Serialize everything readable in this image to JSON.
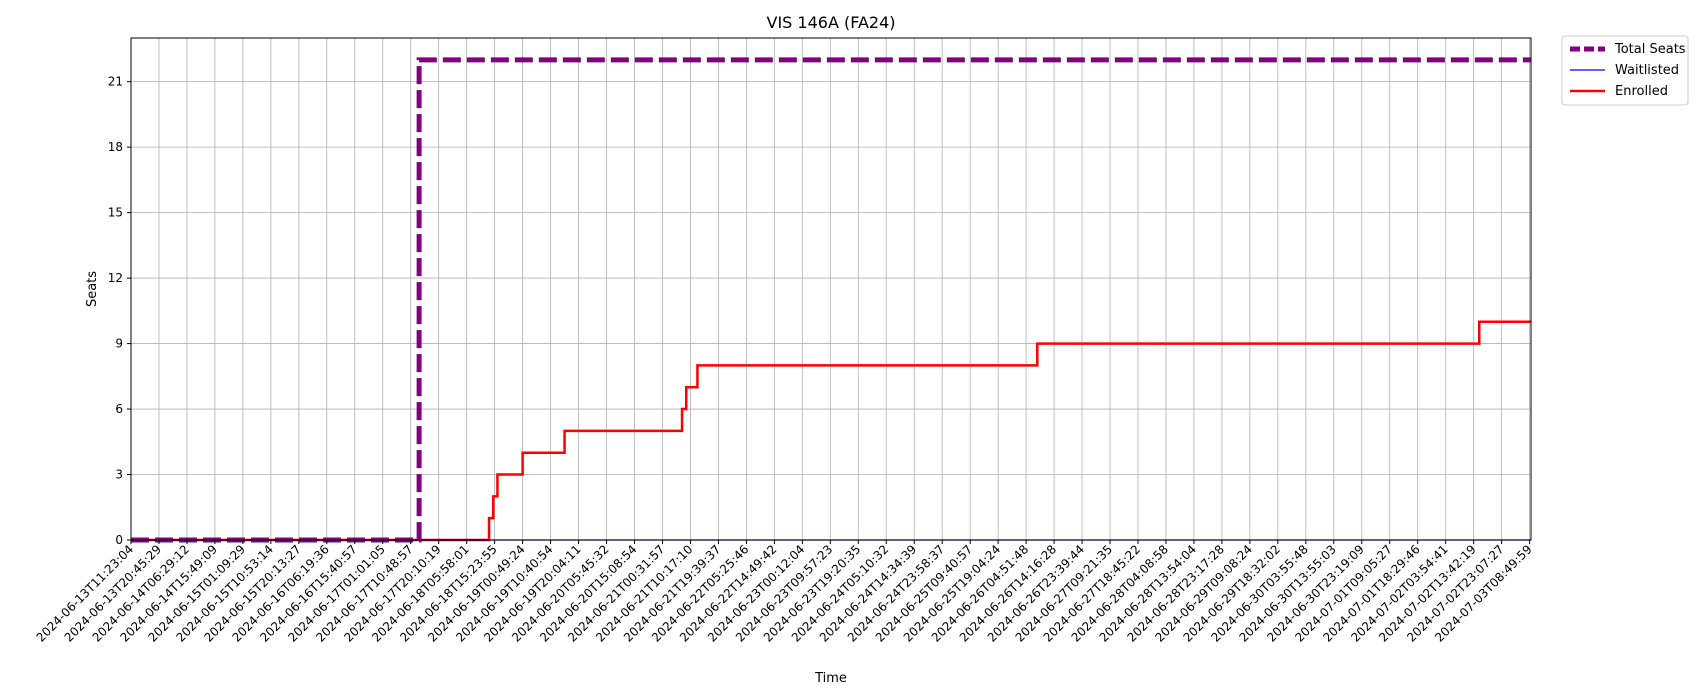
{
  "chart_data": {
    "type": "line",
    "title": "VIS 146A (FA24)",
    "xlabel": "Time",
    "ylabel": "Seats",
    "ylim": [
      0,
      23
    ],
    "yticks": [
      0,
      3,
      6,
      9,
      12,
      15,
      18,
      21
    ],
    "grid": true,
    "legend_position": "outside-top-right",
    "x_tick_labels": [
      "2024-06-13T11:23:04",
      "2024-06-13T20:45:29",
      "2024-06-14T06:29:12",
      "2024-06-14T15:49:09",
      "2024-06-15T01:09:29",
      "2024-06-15T10:53:14",
      "2024-06-15T20:13:27",
      "2024-06-16T06:19:36",
      "2024-06-16T15:40:57",
      "2024-06-17T01:01:05",
      "2024-06-17T10:48:57",
      "2024-06-17T20:10:19",
      "2024-06-18T05:58:01",
      "2024-06-18T15:23:55",
      "2024-06-19T00:49:24",
      "2024-06-19T10:40:54",
      "2024-06-19T20:04:11",
      "2024-06-20T05:45:32",
      "2024-06-20T15:08:54",
      "2024-06-21T00:31:57",
      "2024-06-21T10:17:10",
      "2024-06-21T19:39:37",
      "2024-06-22T05:25:46",
      "2024-06-22T14:49:42",
      "2024-06-23T00:12:04",
      "2024-06-23T09:57:23",
      "2024-06-23T19:20:35",
      "2024-06-24T05:10:32",
      "2024-06-24T14:34:39",
      "2024-06-24T23:58:37",
      "2024-06-25T09:40:57",
      "2024-06-25T19:04:24",
      "2024-06-26T04:51:48",
      "2024-06-26T14:16:28",
      "2024-06-26T23:39:44",
      "2024-06-27T09:21:35",
      "2024-06-27T18:45:22",
      "2024-06-28T04:08:58",
      "2024-06-28T13:54:04",
      "2024-06-28T23:17:28",
      "2024-06-29T09:08:24",
      "2024-06-29T18:32:02",
      "2024-06-30T03:55:48",
      "2024-06-30T13:55:03",
      "2024-06-30T23:19:09",
      "2024-07-01T09:05:27",
      "2024-07-01T18:29:46",
      "2024-07-02T03:54:41",
      "2024-07-02T13:42:19",
      "2024-07-02T23:07:27",
      "2024-07-03T08:49:59"
    ],
    "x_range": [
      0,
      50.05
    ],
    "series": [
      {
        "name": "Total Seats",
        "color": "#800080",
        "style": "dashed",
        "points": [
          [
            0,
            0
          ],
          [
            10.3,
            0
          ],
          [
            10.3,
            22
          ],
          [
            50.05,
            22
          ]
        ]
      },
      {
        "name": "Waitlisted",
        "color": "#0000ff",
        "style": "solid",
        "points": [
          [
            0,
            0
          ],
          [
            50.05,
            0
          ]
        ]
      },
      {
        "name": "Enrolled",
        "color": "#ff0000",
        "style": "solid",
        "points": [
          [
            0,
            0
          ],
          [
            12.8,
            0
          ],
          [
            12.8,
            1
          ],
          [
            12.95,
            1
          ],
          [
            12.95,
            2
          ],
          [
            13.1,
            2
          ],
          [
            13.1,
            3
          ],
          [
            14.0,
            3
          ],
          [
            14.0,
            4
          ],
          [
            15.5,
            4
          ],
          [
            15.5,
            5
          ],
          [
            19.7,
            5
          ],
          [
            19.7,
            6
          ],
          [
            19.85,
            6
          ],
          [
            19.85,
            7
          ],
          [
            20.25,
            7
          ],
          [
            20.25,
            8
          ],
          [
            32.4,
            8
          ],
          [
            32.4,
            9
          ],
          [
            48.2,
            9
          ],
          [
            48.2,
            10
          ],
          [
            50.05,
            10
          ]
        ]
      }
    ]
  }
}
